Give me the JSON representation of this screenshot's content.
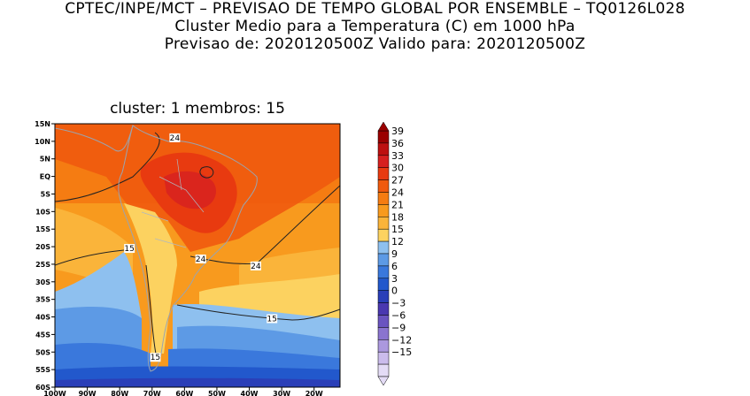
{
  "header": {
    "line1": "CPTEC/INPE/MCT – PREVISAO DE TEMPO GLOBAL POR ENSEMBLE – TQ0126L028",
    "line2": "Cluster Medio para a Temperatura (C) em 1000 hPa",
    "line3": "Previsao de: 2020120500Z   Valido para: 2020120500Z"
  },
  "panel": {
    "title": "cluster: 1  membros: 15"
  },
  "map": {
    "lat_ticks": [
      "15N",
      "10N",
      "5N",
      "EQ",
      "5S",
      "10S",
      "15S",
      "20S",
      "25S",
      "30S",
      "35S",
      "40S",
      "45S",
      "50S",
      "55S",
      "60S"
    ],
    "lon_ticks": [
      "100W",
      "90W",
      "80W",
      "70W",
      "60W",
      "50W",
      "40W",
      "30W",
      "20W"
    ],
    "contour_labels": [
      {
        "text": "24",
        "lon": -63,
        "lat": 11
      },
      {
        "text": "24",
        "lon": -55,
        "lat": -23.5
      },
      {
        "text": "24",
        "lon": -38,
        "lat": -25.5
      },
      {
        "text": "15",
        "lon": -77,
        "lat": -20.5
      },
      {
        "text": "15",
        "lon": -33,
        "lat": -40.5
      },
      {
        "text": "15",
        "lon": -69,
        "lat": -51.5
      }
    ]
  },
  "colorbar": {
    "labels": [
      "39",
      "36",
      "33",
      "30",
      "27",
      "24",
      "21",
      "18",
      "15",
      "12",
      "9",
      "6",
      "3",
      "0",
      "−3",
      "−6",
      "−9",
      "−12",
      "−15"
    ],
    "colors": [
      "#9a0000",
      "#bd1010",
      "#d62020",
      "#e83a10",
      "#f05a0e",
      "#f57c12",
      "#f89a1e",
      "#fab43a",
      "#fcd260",
      "#8ec0ef",
      "#5d9ae5",
      "#3a78dc",
      "#2258cc",
      "#2a3fb8",
      "#4a38b0",
      "#6a54c0",
      "#8a74cf",
      "#ab98de",
      "#cbbcec",
      "#e4dcf6"
    ]
  }
}
